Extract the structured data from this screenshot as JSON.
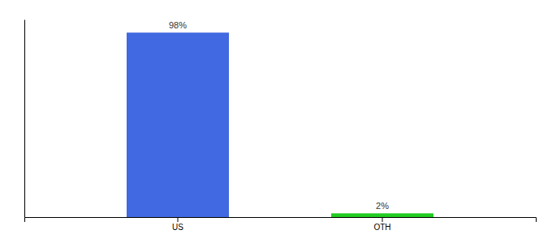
{
  "chart_data": {
    "type": "bar",
    "categories": [
      "US",
      "OTH"
    ],
    "values": [
      98,
      2
    ],
    "value_labels": [
      "98%",
      "2%"
    ],
    "colors": [
      "#4169e1",
      "#22cc22"
    ],
    "ylim": [
      0,
      105
    ],
    "data_labels": true,
    "tick_labels": "x"
  }
}
